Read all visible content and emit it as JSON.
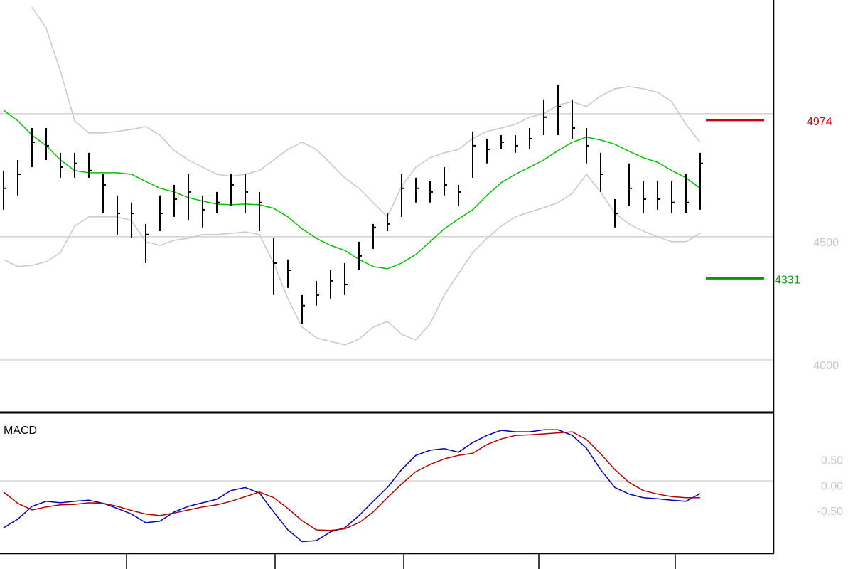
{
  "chart_data": [
    {
      "type": "ohlc",
      "high": [
        4769,
        4812,
        4942,
        4942,
        4841,
        4841,
        4841,
        4754,
        4668,
        4639,
        4552,
        4668,
        4711,
        4754,
        4668,
        4682,
        4754,
        4754,
        4682,
        4494,
        4408,
        4263,
        4321,
        4364,
        4393,
        4480,
        4552,
        4595,
        4754,
        4740,
        4725,
        4783,
        4711,
        4928,
        4899,
        4913,
        4913,
        4942,
        5058,
        5116,
        5058,
        4942,
        4841,
        4653,
        4798,
        4725,
        4725,
        4725,
        4754,
        4841
      ],
      "low": [
        4610,
        4668,
        4783,
        4812,
        4740,
        4740,
        4740,
        4595,
        4509,
        4494,
        4393,
        4523,
        4581,
        4566,
        4538,
        4595,
        4624,
        4595,
        4523,
        4263,
        4292,
        4147,
        4220,
        4249,
        4263,
        4364,
        4451,
        4523,
        4581,
        4639,
        4639,
        4668,
        4624,
        4740,
        4798,
        4855,
        4841,
        4855,
        4913,
        4913,
        4899,
        4798,
        4682,
        4538,
        4624,
        4595,
        4610,
        4595,
        4595,
        4610
      ],
      "close": [
        4697,
        4754,
        4884,
        4870,
        4783,
        4798,
        4769,
        4711,
        4595,
        4595,
        4509,
        4595,
        4653,
        4682,
        4610,
        4639,
        4711,
        4682,
        4639,
        4393,
        4364,
        4220,
        4263,
        4321,
        4306,
        4422,
        4538,
        4552,
        4697,
        4697,
        4682,
        4711,
        4682,
        4870,
        4855,
        4884,
        4870,
        4899,
        4986,
        5029,
        4942,
        4870,
        4754,
        4595,
        4697,
        4653,
        4653,
        4639,
        4639,
        4798
      ],
      "color": "#000000",
      "series": [
        {
          "color": "#00c000",
          "values": [
            5014,
            4971,
            4913,
            4870,
            4812,
            4769,
            4760,
            4760,
            4760,
            4754,
            4725,
            4697,
            4682,
            4659,
            4645,
            4633,
            4630,
            4633,
            4630,
            4616,
            4581,
            4532,
            4494,
            4465,
            4445,
            4408,
            4379,
            4370,
            4393,
            4428,
            4480,
            4532,
            4572,
            4610,
            4668,
            4720,
            4754,
            4783,
            4812,
            4850,
            4884,
            4905,
            4893,
            4876,
            4847,
            4821,
            4803,
            4769,
            4740,
            4697
          ]
        },
        {
          "color": "#c8c8c8",
          "values": [
            null,
            null,
            5433,
            5347,
            5173,
            4971,
            4922,
            4922,
            4928,
            4936,
            4948,
            4913,
            4850,
            4812,
            4783,
            4754,
            4746,
            4754,
            4769,
            4812,
            4855,
            4884,
            4855,
            4798,
            4740,
            4697,
            4639,
            4581,
            4705,
            4783,
            4821,
            4841,
            4855,
            4899,
            4928,
            4942,
            4957,
            4986,
            5000,
            5035,
            5049,
            5029,
            5072,
            5101,
            5110,
            5101,
            5087,
            5049,
            4957,
            4884
          ]
        },
        {
          "color": "#c8c8c8",
          "values": [
            4408,
            4379,
            4384,
            4399,
            4436,
            4543,
            4581,
            4581,
            4581,
            4566,
            4480,
            4465,
            4486,
            4494,
            4509,
            4509,
            4514,
            4520,
            4509,
            4393,
            4249,
            4133,
            4090,
            4075,
            4061,
            4084,
            4133,
            4156,
            4104,
            4081,
            4147,
            4263,
            4350,
            4436,
            4494,
            4543,
            4581,
            4601,
            4618,
            4639,
            4676,
            4754,
            4682,
            4595,
            4552,
            4523,
            4500,
            4480,
            4480,
            4514
          ]
        }
      ],
      "ylim": [
        3786,
        5462
      ],
      "yticks": [
        4000,
        4500
      ],
      "grid_lines": [
        4000,
        4500,
        5000
      ],
      "levels": [
        {
          "value": 4974,
          "color": "#cc0000"
        },
        {
          "value": 4331,
          "color": "#009900"
        }
      ]
    },
    {
      "type": "line",
      "title": "MACD",
      "series": [
        {
          "color": "#0000b0",
          "values": [
            -0.92,
            -0.75,
            -0.5,
            -0.4,
            -0.43,
            -0.4,
            -0.38,
            -0.44,
            -0.54,
            -0.65,
            -0.82,
            -0.79,
            -0.61,
            -0.5,
            -0.43,
            -0.36,
            -0.19,
            -0.13,
            -0.24,
            -0.61,
            -0.96,
            -1.19,
            -1.17,
            -1.0,
            -0.92,
            -0.68,
            -0.4,
            -0.13,
            0.22,
            0.5,
            0.6,
            0.63,
            0.56,
            0.75,
            0.89,
            0.99,
            0.96,
            0.96,
            1.0,
            1.0,
            0.89,
            0.64,
            0.22,
            -0.13,
            -0.26,
            -0.33,
            -0.35,
            -0.38,
            -0.4,
            -0.25
          ]
        },
        {
          "color": "#b00000",
          "values": [
            -0.22,
            -0.44,
            -0.57,
            -0.51,
            -0.47,
            -0.46,
            -0.43,
            -0.44,
            -0.5,
            -0.58,
            -0.65,
            -0.68,
            -0.63,
            -0.57,
            -0.51,
            -0.47,
            -0.4,
            -0.31,
            -0.22,
            -0.33,
            -0.54,
            -0.78,
            -0.96,
            -0.97,
            -0.94,
            -0.82,
            -0.61,
            -0.33,
            -0.06,
            0.18,
            0.32,
            0.43,
            0.5,
            0.54,
            0.71,
            0.82,
            0.89,
            0.9,
            0.92,
            0.94,
            0.96,
            0.81,
            0.53,
            0.22,
            -0.03,
            -0.19,
            -0.26,
            -0.31,
            -0.33,
            -0.33
          ]
        }
      ],
      "ylim": [
        -1.42,
        1.31
      ],
      "yticks": [
        {
          "value": 0.5,
          "label": "0.50"
        },
        {
          "value": 0,
          "label": "0.00"
        },
        {
          "value": -0.5,
          "label": "-0.50"
        }
      ],
      "grid_lines": [
        0
      ]
    }
  ]
}
